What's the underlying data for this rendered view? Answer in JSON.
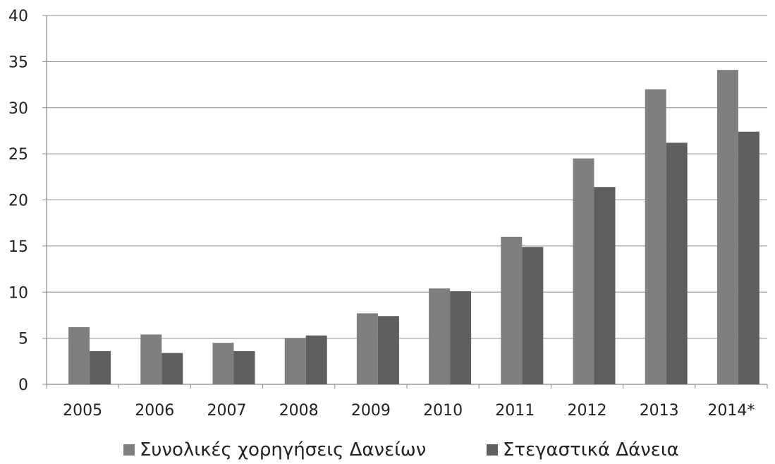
{
  "chart_data": {
    "type": "bar",
    "title": "",
    "xlabel": "",
    "ylabel": "",
    "categories": [
      "2005",
      "2006",
      "2007",
      "2008",
      "2009",
      "2010",
      "2011",
      "2012",
      "2013",
      "2014*"
    ],
    "series": [
      {
        "name": "Συνολικές χορηγήσεις Δανείων",
        "color": "#7f7f7f",
        "values": [
          6.2,
          5.4,
          4.5,
          5.0,
          7.7,
          10.4,
          16.0,
          24.5,
          32.0,
          34.1
        ]
      },
      {
        "name": "Στεγαστικά Δάνεια",
        "color": "#5f5f5f",
        "values": [
          3.6,
          3.4,
          3.6,
          5.3,
          7.4,
          10.1,
          14.9,
          21.4,
          26.2,
          27.4
        ]
      }
    ],
    "ylim": [
      0,
      40
    ],
    "yticks": [
      "0",
      "5",
      "10",
      "15",
      "20",
      "25",
      "30",
      "35",
      "40"
    ],
    "grid": true,
    "legend_position": "bottom"
  }
}
